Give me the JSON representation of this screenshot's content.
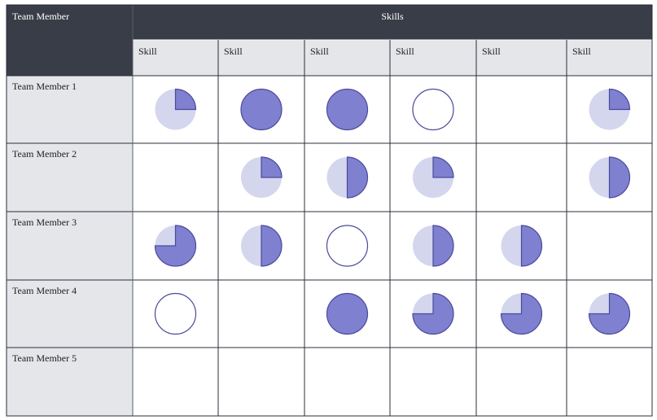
{
  "header": {
    "corner": "Team Member",
    "group": "Skills",
    "columns": [
      "Skill",
      "Skill",
      "Skill",
      "Skill",
      "Skill",
      "Skill"
    ]
  },
  "rows": [
    {
      "label": "Team Member 1",
      "levels": [
        25,
        100,
        100,
        0,
        null,
        25
      ]
    },
    {
      "label": "Team Member 2",
      "levels": [
        null,
        25,
        50,
        25,
        null,
        50
      ]
    },
    {
      "label": "Team Member 3",
      "levels": [
        75,
        50,
        0,
        50,
        50,
        null
      ]
    },
    {
      "label": "Team Member 4",
      "levels": [
        0,
        null,
        100,
        75,
        75,
        75
      ]
    },
    {
      "label": "Team Member 5",
      "levels": [
        null,
        null,
        null,
        null,
        null,
        null
      ]
    }
  ]
}
